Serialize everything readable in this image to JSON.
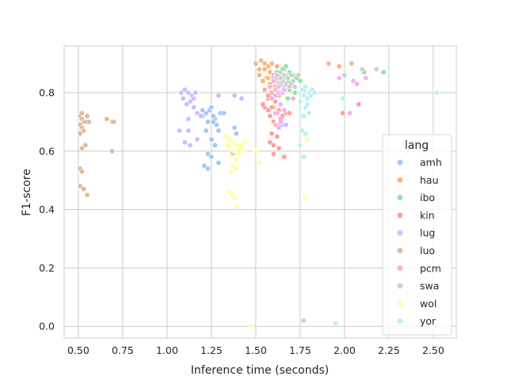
{
  "chart_data": {
    "type": "scatter",
    "xlabel": "Inference time (seconds)",
    "ylabel": "F1-score",
    "xlim": [
      0.42,
      2.63
    ],
    "ylim": [
      -0.04,
      0.96
    ],
    "xticks": [
      0.5,
      0.75,
      1.0,
      1.25,
      1.5,
      1.75,
      2.0,
      2.25,
      2.5
    ],
    "xtick_labels": [
      "0.50",
      "0.75",
      "1.00",
      "1.25",
      "1.50",
      "1.75",
      "2.00",
      "2.25",
      "2.50"
    ],
    "yticks": [
      0.0,
      0.2,
      0.4,
      0.6,
      0.8
    ],
    "ytick_labels": [
      "0.0",
      "0.2",
      "0.4",
      "0.6",
      "0.8"
    ],
    "grid": true,
    "legend_position": "center-right",
    "legend_title": "lang",
    "series": [
      {
        "name": "amh",
        "color": "#a1c9f4",
        "points": [
          [
            1.2,
            0.72
          ],
          [
            1.22,
            0.73
          ],
          [
            1.24,
            0.74
          ],
          [
            1.25,
            0.75
          ],
          [
            1.27,
            0.71
          ],
          [
            1.23,
            0.7
          ],
          [
            1.26,
            0.72
          ],
          [
            1.28,
            0.69
          ],
          [
            1.3,
            0.73
          ],
          [
            1.22,
            0.67
          ],
          [
            1.25,
            0.64
          ],
          [
            1.27,
            0.62
          ],
          [
            1.29,
            0.67
          ],
          [
            1.23,
            0.59
          ],
          [
            1.25,
            0.58
          ],
          [
            1.21,
            0.55
          ],
          [
            1.23,
            0.54
          ],
          [
            1.29,
            0.56
          ],
          [
            1.38,
            0.68
          ],
          [
            1.39,
            0.66
          ],
          [
            1.37,
            0.59
          ],
          [
            1.32,
            0.73
          ],
          [
            1.2,
            0.74
          ],
          [
            1.26,
            0.7
          ]
        ]
      },
      {
        "name": "hau",
        "color": "#ffb482",
        "points": [
          [
            1.5,
            0.9
          ],
          [
            1.53,
            0.91
          ],
          [
            1.55,
            0.9
          ],
          [
            1.57,
            0.89
          ],
          [
            1.59,
            0.9
          ],
          [
            1.62,
            0.89
          ],
          [
            1.55,
            0.88
          ],
          [
            1.58,
            0.87
          ],
          [
            1.6,
            0.86
          ],
          [
            1.52,
            0.86
          ],
          [
            1.56,
            0.85
          ],
          [
            1.54,
            0.84
          ],
          [
            1.58,
            0.83
          ],
          [
            1.62,
            0.84
          ],
          [
            1.55,
            0.81
          ],
          [
            1.59,
            0.8
          ],
          [
            1.57,
            0.78
          ],
          [
            1.61,
            0.82
          ],
          [
            1.64,
            0.86
          ],
          [
            1.66,
            0.88
          ],
          [
            1.52,
            0.88
          ],
          [
            1.6,
            0.75
          ],
          [
            1.63,
            0.79
          ],
          [
            1.68,
            0.84
          ],
          [
            1.91,
            0.9
          ],
          [
            1.97,
            0.89
          ],
          [
            2.04,
            0.9
          ],
          [
            1.57,
            0.85
          ]
        ]
      },
      {
        "name": "ibo",
        "color": "#8de5a1",
        "points": [
          [
            1.62,
            0.87
          ],
          [
            1.65,
            0.88
          ],
          [
            1.67,
            0.89
          ],
          [
            1.69,
            0.87
          ],
          [
            1.71,
            0.86
          ],
          [
            1.66,
            0.85
          ],
          [
            1.68,
            0.84
          ],
          [
            1.7,
            0.83
          ],
          [
            1.73,
            0.85
          ],
          [
            1.64,
            0.86
          ],
          [
            1.66,
            0.82
          ],
          [
            1.69,
            0.81
          ],
          [
            1.72,
            0.8
          ],
          [
            1.75,
            0.84
          ],
          [
            1.77,
            0.81
          ],
          [
            1.68,
            0.78
          ],
          [
            2.11,
            0.87
          ],
          [
            2.22,
            0.87
          ],
          [
            1.63,
            0.83
          ]
        ]
      },
      {
        "name": "kin",
        "color": "#ff9f9b",
        "points": [
          [
            1.55,
            0.75
          ],
          [
            1.57,
            0.74
          ],
          [
            1.59,
            0.75
          ],
          [
            1.61,
            0.73
          ],
          [
            1.63,
            0.74
          ],
          [
            1.65,
            0.72
          ],
          [
            1.58,
            0.72
          ],
          [
            1.6,
            0.7
          ],
          [
            1.62,
            0.69
          ],
          [
            1.64,
            0.71
          ],
          [
            1.59,
            0.66
          ],
          [
            1.62,
            0.65
          ],
          [
            1.58,
            0.63
          ],
          [
            1.6,
            0.62
          ],
          [
            1.63,
            0.61
          ],
          [
            1.6,
            0.59
          ],
          [
            1.66,
            0.58
          ],
          [
            1.67,
            0.73
          ],
          [
            1.69,
            0.73
          ],
          [
            1.99,
            0.73
          ],
          [
            2.08,
            0.76
          ],
          [
            1.54,
            0.76
          ],
          [
            1.57,
            0.79
          ],
          [
            1.61,
            0.77
          ]
        ]
      },
      {
        "name": "lug",
        "color": "#d0bbff",
        "points": [
          [
            1.08,
            0.8
          ],
          [
            1.1,
            0.81
          ],
          [
            1.12,
            0.8
          ],
          [
            1.14,
            0.79
          ],
          [
            1.16,
            0.8
          ],
          [
            1.09,
            0.78
          ],
          [
            1.11,
            0.76
          ],
          [
            1.13,
            0.77
          ],
          [
            1.15,
            0.78
          ],
          [
            1.17,
            0.73
          ],
          [
            1.12,
            0.71
          ],
          [
            1.07,
            0.67
          ],
          [
            1.1,
            0.63
          ],
          [
            1.13,
            0.62
          ],
          [
            1.17,
            0.64
          ],
          [
            1.12,
            0.67
          ],
          [
            1.19,
            0.72
          ],
          [
            1.29,
            0.79
          ],
          [
            1.38,
            0.79
          ],
          [
            1.42,
            0.78
          ],
          [
            1.15,
            0.75
          ],
          [
            1.65,
            0.69
          ],
          [
            1.67,
            0.69
          ],
          [
            1.63,
            0.68
          ],
          [
            1.61,
            0.79
          ],
          [
            1.6,
            0.85
          ]
        ]
      },
      {
        "name": "luo",
        "color": "#debb9b",
        "points": [
          [
            0.51,
            0.72
          ],
          [
            0.52,
            0.71
          ],
          [
            0.53,
            0.7
          ],
          [
            0.51,
            0.69
          ],
          [
            0.52,
            0.68
          ],
          [
            0.53,
            0.67
          ],
          [
            0.51,
            0.66
          ],
          [
            0.54,
            0.7
          ],
          [
            0.55,
            0.72
          ],
          [
            0.56,
            0.7
          ],
          [
            0.52,
            0.61
          ],
          [
            0.54,
            0.62
          ],
          [
            0.51,
            0.54
          ],
          [
            0.52,
            0.53
          ],
          [
            0.51,
            0.48
          ],
          [
            0.53,
            0.47
          ],
          [
            0.55,
            0.45
          ],
          [
            0.66,
            0.71
          ],
          [
            0.69,
            0.7
          ],
          [
            0.7,
            0.7
          ],
          [
            0.69,
            0.6
          ],
          [
            0.52,
            0.73
          ]
        ]
      },
      {
        "name": "pcm",
        "color": "#fab0e4",
        "points": [
          [
            1.6,
            0.84
          ],
          [
            1.62,
            0.85
          ],
          [
            1.64,
            0.83
          ],
          [
            1.66,
            0.82
          ],
          [
            1.58,
            0.82
          ],
          [
            1.61,
            0.81
          ],
          [
            1.63,
            0.8
          ],
          [
            1.65,
            0.8
          ],
          [
            1.59,
            0.78
          ],
          [
            1.64,
            0.76
          ],
          [
            1.66,
            0.74
          ],
          [
            1.62,
            0.73
          ],
          [
            1.64,
            0.7
          ],
          [
            1.61,
            0.69
          ],
          [
            1.71,
            0.78
          ],
          [
            1.97,
            0.85
          ],
          [
            2.05,
            0.84
          ],
          [
            2.07,
            0.83
          ],
          [
            2.12,
            0.85
          ],
          [
            2.03,
            0.73
          ],
          [
            1.67,
            0.86
          ]
        ]
      },
      {
        "name": "swa",
        "color": "#cfcfcf",
        "points": [
          [
            1.62,
            0.86
          ],
          [
            1.64,
            0.87
          ],
          [
            1.66,
            0.86
          ],
          [
            1.68,
            0.85
          ],
          [
            1.7,
            0.86
          ],
          [
            1.65,
            0.84
          ],
          [
            1.67,
            0.83
          ],
          [
            1.69,
            0.82
          ],
          [
            1.71,
            0.84
          ],
          [
            1.63,
            0.82
          ],
          [
            1.72,
            0.82
          ],
          [
            1.66,
            0.81
          ],
          [
            1.74,
            0.86
          ],
          [
            2.0,
            0.86
          ],
          [
            2.1,
            0.88
          ],
          [
            2.18,
            0.88
          ],
          [
            1.77,
            0.02
          ],
          [
            1.64,
            0.85
          ]
        ]
      },
      {
        "name": "wol",
        "color": "#fffea3",
        "points": [
          [
            1.33,
            0.65
          ],
          [
            1.35,
            0.64
          ],
          [
            1.37,
            0.63
          ],
          [
            1.39,
            0.62
          ],
          [
            1.41,
            0.61
          ],
          [
            1.35,
            0.61
          ],
          [
            1.38,
            0.6
          ],
          [
            1.4,
            0.59
          ],
          [
            1.36,
            0.58
          ],
          [
            1.39,
            0.57
          ],
          [
            1.37,
            0.55
          ],
          [
            1.36,
            0.53
          ],
          [
            1.39,
            0.54
          ],
          [
            1.43,
            0.6
          ],
          [
            1.44,
            0.63
          ],
          [
            1.35,
            0.46
          ],
          [
            1.37,
            0.45
          ],
          [
            1.38,
            0.44
          ],
          [
            1.39,
            0.41
          ],
          [
            1.5,
            0.6
          ],
          [
            1.52,
            0.56
          ],
          [
            1.79,
            0.64
          ],
          [
            1.78,
            0.44
          ],
          [
            1.47,
            0.0
          ],
          [
            1.34,
            0.62
          ],
          [
            1.42,
            0.62
          ]
        ]
      },
      {
        "name": "yor",
        "color": "#b9f2f0",
        "points": [
          [
            1.76,
            0.81
          ],
          [
            1.78,
            0.82
          ],
          [
            1.8,
            0.8
          ],
          [
            1.82,
            0.81
          ],
          [
            1.77,
            0.79
          ],
          [
            1.79,
            0.78
          ],
          [
            1.81,
            0.79
          ],
          [
            1.75,
            0.77
          ],
          [
            1.78,
            0.75
          ],
          [
            1.8,
            0.73
          ],
          [
            1.77,
            0.72
          ],
          [
            1.76,
            0.67
          ],
          [
            1.78,
            0.66
          ],
          [
            1.75,
            0.62
          ],
          [
            1.77,
            0.58
          ],
          [
            1.79,
            0.76
          ],
          [
            1.99,
            0.78
          ],
          [
            1.95,
            0.01
          ],
          [
            2.52,
            0.8
          ],
          [
            1.83,
            0.8
          ]
        ]
      }
    ]
  }
}
